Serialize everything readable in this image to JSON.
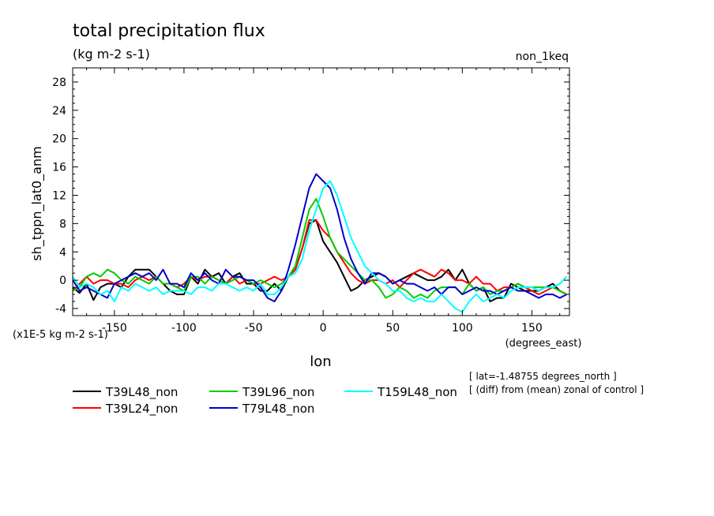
{
  "chart_data": {
    "type": "line",
    "title": "total precipitation flux",
    "subtitle": "(kg m-2 s-1)",
    "experiment": "non_1keq",
    "ylabel": "sh_tppn_lat0_anm",
    "xlabel": "lon",
    "x_units": "(degrees_east)",
    "y_scale_note": "(x1E-5 kg m-2 s-1)",
    "xlim": [
      -180,
      177
    ],
    "ylim": [
      -5,
      30
    ],
    "x_ticks": [
      -150,
      -100,
      -50,
      0,
      50,
      100,
      150
    ],
    "x_tick_labels": [
      "-150",
      "-100",
      "-50",
      "0",
      "50",
      "100",
      "150"
    ],
    "y_ticks": [
      -4,
      0,
      4,
      8,
      12,
      16,
      20,
      24,
      28
    ],
    "y_tick_labels": [
      "-4",
      "0",
      "4",
      "8",
      "12",
      "16",
      "20",
      "24",
      "28"
    ],
    "grid": false,
    "legend_position": "bottom-left",
    "notes": [
      "[ lat=-1.48755 degrees_north ]",
      "[ (diff) from (mean) zonal of control ]"
    ],
    "series": [
      {
        "name": "T39L48_non",
        "color": "#000000",
        "x": [
          -180,
          -175,
          -170,
          -165,
          -160,
          -155,
          -150,
          -145,
          -140,
          -135,
          -130,
          -125,
          -120,
          -115,
          -110,
          -105,
          -100,
          -95,
          -90,
          -85,
          -80,
          -75,
          -70,
          -65,
          -60,
          -55,
          -50,
          -45,
          -40,
          -35,
          -30,
          -25,
          -20,
          -15,
          -10,
          -5,
          0,
          5,
          10,
          15,
          20,
          25,
          30,
          35,
          40,
          45,
          50,
          55,
          60,
          65,
          70,
          75,
          80,
          85,
          90,
          95,
          100,
          105,
          110,
          115,
          120,
          125,
          130,
          135,
          140,
          145,
          150,
          155,
          160,
          165,
          170,
          175
        ],
        "values": [
          -1,
          -1.8,
          -0.5,
          -2.8,
          -1,
          -0.5,
          -0.5,
          -1,
          0.5,
          1.5,
          1.5,
          1.5,
          0.5,
          -0.5,
          -1.5,
          -2,
          -2,
          0.5,
          -0.5,
          1.5,
          0.5,
          1,
          -0.5,
          0.5,
          1,
          -0.5,
          -0.5,
          -1.5,
          -1.5,
          -0.5,
          -1.5,
          0.5,
          1.5,
          4.5,
          8,
          8.5,
          5.5,
          4,
          2.5,
          0.5,
          -1.5,
          -1,
          0,
          0.5,
          1,
          0.5,
          -0.5,
          0,
          0.5,
          1,
          0.5,
          0,
          0,
          0.5,
          1.5,
          0,
          1.5,
          -0.5,
          -1.5,
          -1,
          -3,
          -2.5,
          -2.5,
          -0.5,
          -1,
          -1.5,
          -1.5,
          -1.5,
          -1,
          -0.5,
          -1.5,
          -2
        ]
      },
      {
        "name": "T39L24_non",
        "color": "#ff0000",
        "x": [
          -180,
          -175,
          -170,
          -165,
          -160,
          -155,
          -150,
          -145,
          -140,
          -135,
          -130,
          -125,
          -120,
          -115,
          -110,
          -105,
          -100,
          -95,
          -90,
          -85,
          -80,
          -75,
          -70,
          -65,
          -60,
          -55,
          -50,
          -45,
          -40,
          -35,
          -30,
          -25,
          -20,
          -15,
          -10,
          -5,
          0,
          5,
          10,
          15,
          20,
          25,
          30,
          35,
          40,
          45,
          50,
          55,
          60,
          65,
          70,
          75,
          80,
          85,
          90,
          95,
          100,
          105,
          110,
          115,
          120,
          125,
          130,
          135,
          140,
          145,
          150,
          155,
          160,
          165,
          170,
          175
        ],
        "values": [
          -1.5,
          -0.5,
          0.5,
          -0.5,
          0,
          0,
          -0.5,
          -0.5,
          -1,
          0,
          0.5,
          0,
          0.5,
          -0.5,
          -0.5,
          -1,
          -0.5,
          0.5,
          0,
          0.5,
          0.5,
          0,
          -0.5,
          0.5,
          -0.5,
          0,
          -0.5,
          -0.5,
          0,
          0.5,
          0,
          0.5,
          1.5,
          4.5,
          8.5,
          8.5,
          7,
          6,
          4,
          2.5,
          1,
          0,
          -0.5,
          0,
          0,
          -0.5,
          0,
          -1,
          0,
          1,
          1.5,
          1,
          0.5,
          1.5,
          1,
          0,
          0,
          -0.5,
          0.5,
          -0.5,
          -0.5,
          -1.5,
          -1,
          -1,
          -0.5,
          -1,
          -1.5,
          -2,
          -1.5,
          -1,
          -1.5,
          -2
        ]
      },
      {
        "name": "T39L96_non",
        "color": "#00cc00",
        "x": [
          -180,
          -175,
          -170,
          -165,
          -160,
          -155,
          -150,
          -145,
          -140,
          -135,
          -130,
          -125,
          -120,
          -115,
          -110,
          -105,
          -100,
          -95,
          -90,
          -85,
          -80,
          -75,
          -70,
          -65,
          -60,
          -55,
          -50,
          -45,
          -40,
          -35,
          -30,
          -25,
          -20,
          -15,
          -10,
          -5,
          0,
          5,
          10,
          15,
          20,
          25,
          30,
          35,
          40,
          45,
          50,
          55,
          60,
          65,
          70,
          75,
          80,
          85,
          90,
          95,
          100,
          105,
          110,
          115,
          120,
          125,
          130,
          135,
          140,
          145,
          150,
          155,
          160,
          165,
          170,
          175
        ],
        "values": [
          -1.5,
          -1,
          0.5,
          1,
          0.5,
          1.5,
          1,
          0,
          -0.5,
          0.5,
          0,
          -0.5,
          0.5,
          -0.5,
          -0.5,
          -1,
          -1.5,
          0.5,
          0.5,
          -0.5,
          0.5,
          0,
          -0.5,
          0,
          0.5,
          0,
          -0.5,
          0,
          -0.5,
          -1,
          -0.5,
          0.5,
          2,
          6,
          10,
          11.5,
          9,
          6,
          4,
          3,
          2,
          1,
          0,
          0,
          -1,
          -2.5,
          -2,
          -1,
          -1.5,
          -2.5,
          -2,
          -2.5,
          -1.5,
          -1,
          -1,
          -1,
          -2,
          -0.5,
          -1.5,
          -1,
          -2,
          -1.5,
          -1.5,
          -1,
          -0.5,
          -1,
          -1,
          -1,
          -1,
          -1,
          -1.5,
          -2
        ]
      },
      {
        "name": "T79L48_non",
        "color": "#0000cc",
        "x": [
          -180,
          -175,
          -170,
          -165,
          -160,
          -155,
          -150,
          -145,
          -140,
          -135,
          -130,
          -125,
          -120,
          -115,
          -110,
          -105,
          -100,
          -95,
          -90,
          -85,
          -80,
          -75,
          -70,
          -65,
          -60,
          -55,
          -50,
          -45,
          -40,
          -35,
          -30,
          -25,
          -20,
          -15,
          -10,
          -5,
          0,
          5,
          10,
          15,
          20,
          25,
          30,
          35,
          40,
          45,
          50,
          55,
          60,
          65,
          70,
          75,
          80,
          85,
          90,
          95,
          100,
          105,
          110,
          115,
          120,
          125,
          130,
          135,
          140,
          145,
          150,
          155,
          160,
          165,
          170,
          175
        ],
        "values": [
          0,
          -1.5,
          -1,
          -1.5,
          -2,
          -2.5,
          -0.5,
          0,
          0.5,
          1,
          0.5,
          1,
          0,
          1.5,
          -0.5,
          -0.5,
          -1,
          1,
          0,
          1,
          0,
          -0.5,
          1.5,
          0.5,
          0.5,
          0,
          0,
          -1,
          -2.5,
          -3,
          -1.5,
          1.5,
          5,
          9,
          13,
          15,
          14,
          13,
          10,
          6,
          3,
          1,
          -0.5,
          1,
          1,
          0.5,
          -0.5,
          0,
          -0.5,
          -0.5,
          -1,
          -1.5,
          -1,
          -2,
          -1,
          -1,
          -2,
          -1.5,
          -1,
          -1.5,
          -1.5,
          -2,
          -1.5,
          -1,
          -1.5,
          -1.5,
          -2,
          -2.5,
          -2,
          -2,
          -2.5,
          -2
        ]
      },
      {
        "name": "T159L48_non",
        "color": "#00ffff",
        "x": [
          -180,
          -175,
          -170,
          -165,
          -160,
          -155,
          -150,
          -145,
          -140,
          -135,
          -130,
          -125,
          -120,
          -115,
          -110,
          -105,
          -100,
          -95,
          -90,
          -85,
          -80,
          -75,
          -70,
          -65,
          -60,
          -55,
          -50,
          -45,
          -40,
          -35,
          -30,
          -25,
          -20,
          -15,
          -10,
          -5,
          0,
          5,
          10,
          15,
          20,
          25,
          30,
          35,
          40,
          45,
          50,
          55,
          60,
          65,
          70,
          75,
          80,
          85,
          90,
          95,
          100,
          105,
          110,
          115,
          120,
          125,
          130,
          135,
          140,
          145,
          150,
          155,
          160,
          165,
          170,
          175
        ],
        "values": [
          0.5,
          -1,
          -0.5,
          -1,
          -2,
          -1.5,
          -3,
          -1,
          -1.5,
          -0.5,
          -1,
          -1.5,
          -1,
          -2,
          -1.5,
          -1.5,
          -1.5,
          -2,
          -1,
          -1,
          -1.5,
          -0.5,
          -0.5,
          -1,
          -1.5,
          -1,
          -1.5,
          -0.5,
          -2,
          -2,
          -1,
          0.5,
          1,
          3,
          7,
          10,
          13,
          14,
          12,
          9,
          6,
          4,
          2,
          1,
          0,
          -0.5,
          -1.5,
          -1.5,
          -2.5,
          -3,
          -2.5,
          -3,
          -3,
          -2,
          -3,
          -4,
          -4.5,
          -3,
          -2,
          -3,
          -2.5,
          -2,
          -2.5,
          -1.5,
          -1,
          -1,
          -1,
          -1.5,
          -1,
          -1,
          -0.5,
          0.5
        ]
      }
    ]
  }
}
